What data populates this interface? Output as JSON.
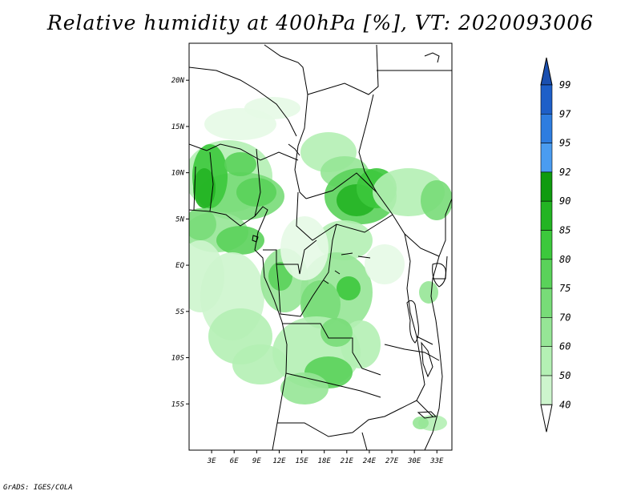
{
  "title": "Relative humidity at 400hPa [%], VT: 2020093006",
  "credit": "GrADS: IGES/COLA",
  "map": {
    "lon_range": [
      0,
      35
    ],
    "lat_range": [
      -20,
      24
    ],
    "lon_ticks": [
      {
        "value": 3,
        "label": "3E"
      },
      {
        "value": 6,
        "label": "6E"
      },
      {
        "value": 9,
        "label": "9E"
      },
      {
        "value": 12,
        "label": "12E"
      },
      {
        "value": 15,
        "label": "15E"
      },
      {
        "value": 18,
        "label": "18E"
      },
      {
        "value": 21,
        "label": "21E"
      },
      {
        "value": 24,
        "label": "24E"
      },
      {
        "value": 27,
        "label": "27E"
      },
      {
        "value": 30,
        "label": "30E"
      },
      {
        "value": 33,
        "label": "33E"
      }
    ],
    "lat_ticks": [
      {
        "value": 20,
        "label": "20N"
      },
      {
        "value": 15,
        "label": "15N"
      },
      {
        "value": 10,
        "label": "10N"
      },
      {
        "value": 5,
        "label": "5N"
      },
      {
        "value": 0,
        "label": "EQ"
      },
      {
        "value": -5,
        "label": "5S"
      },
      {
        "value": -10,
        "label": "10S"
      },
      {
        "value": -15,
        "label": "15S"
      }
    ]
  },
  "colorbar": {
    "levels": [
      "40",
      "50",
      "60",
      "70",
      "75",
      "80",
      "85",
      "90",
      "92",
      "95",
      "97",
      "99"
    ],
    "colors": [
      "#e6fae6",
      "#cdf5cd",
      "#b4f0b4",
      "#96e696",
      "#78dc78",
      "#5ad25a",
      "#3cc83c",
      "#23b423",
      "#0f9b0f",
      "#4a9cf0",
      "#2e7de0",
      "#1e5fc8",
      "#1a4fb0"
    ]
  }
}
